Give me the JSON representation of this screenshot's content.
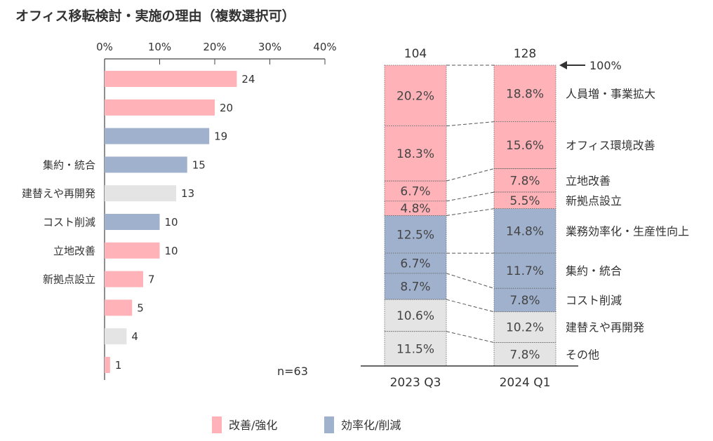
{
  "title": "オフィス移転検討・実施の理由（複数選択可）",
  "colors": {
    "improve": "#ffb3b8",
    "efficiency": "#9fb1cd",
    "other": "#e4e4e4"
  },
  "chart_data": [
    {
      "type": "bar",
      "orientation": "horizontal",
      "axis_ticks": [
        "0%",
        "10%",
        "20%",
        "30%",
        "40%"
      ],
      "xlim": [
        0,
        40
      ],
      "note": "n=63",
      "categories": [
        "",
        "",
        "",
        "集約・統合",
        "建替えや再開発",
        "コスト削減",
        "立地改善",
        "新拠点設立",
        "",
        "",
        ""
      ],
      "values": [
        24,
        20,
        19,
        15,
        13,
        10,
        10,
        7,
        5,
        4,
        1
      ],
      "groups": [
        "improve",
        "improve",
        "efficiency",
        "efficiency",
        "other",
        "efficiency",
        "improve",
        "improve",
        "improve",
        "other",
        "improve"
      ]
    },
    {
      "type": "stacked_bar",
      "categories": [
        "2023 Q3",
        "2024 Q1"
      ],
      "totals": [
        "104",
        "128"
      ],
      "top_marker": "100%",
      "segments": [
        {
          "name": "人員増・事業拡大",
          "group": "improve",
          "values": [
            20.2,
            18.8
          ],
          "labels": [
            "20.2%",
            "18.8%"
          ]
        },
        {
          "name": "オフィス環境改善",
          "group": "improve",
          "values": [
            18.3,
            15.6
          ],
          "labels": [
            "18.3%",
            "15.6%"
          ]
        },
        {
          "name": "立地改善",
          "group": "improve",
          "values": [
            6.7,
            7.8
          ],
          "labels": [
            "6.7%",
            "7.8%"
          ]
        },
        {
          "name": "新拠点設立",
          "group": "improve",
          "values": [
            4.8,
            5.5
          ],
          "labels": [
            "4.8%",
            "5.5%"
          ]
        },
        {
          "name": "業務効率化・生産性向上",
          "group": "efficiency",
          "values": [
            12.5,
            14.8
          ],
          "labels": [
            "12.5%",
            "14.8%"
          ]
        },
        {
          "name": "集約・統合",
          "group": "efficiency",
          "values": [
            6.7,
            11.7
          ],
          "labels": [
            "6.7%",
            "11.7%"
          ]
        },
        {
          "name": "コスト削減",
          "group": "efficiency",
          "values": [
            8.7,
            7.8
          ],
          "labels": [
            "8.7%",
            "7.8%"
          ]
        },
        {
          "name": "建替えや再開発",
          "group": "other",
          "values": [
            10.6,
            10.2
          ],
          "labels": [
            "10.6%",
            "10.2%"
          ]
        },
        {
          "name": "その他",
          "group": "other",
          "values": [
            11.5,
            7.8
          ],
          "labels": [
            "11.5%",
            "7.8%"
          ]
        }
      ]
    }
  ],
  "legend": [
    {
      "label": "改善/強化",
      "group": "improve"
    },
    {
      "label": "効率化/削減",
      "group": "efficiency"
    }
  ]
}
